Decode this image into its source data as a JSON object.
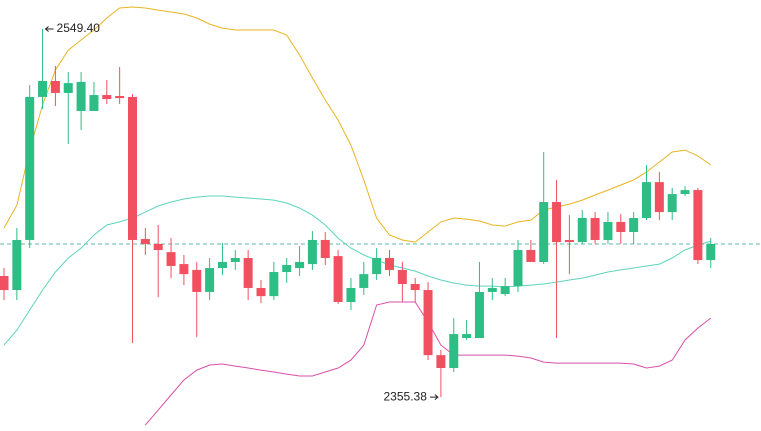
{
  "chart_data": {
    "type": "candlestick",
    "ylim": [
      2337.5,
      2564.7
    ],
    "up_color": "#2ebd85",
    "down_color": "#f0505f",
    "open": [
      2419.2,
      2411.8,
      2438.2,
      2513.6,
      2522.0,
      2515.7,
      2506.2,
      2506.2,
      2514.6,
      2514.1,
      2513.6,
      2438.7,
      2436.1,
      2431.8,
      2425.5,
      2422.4,
      2410.8,
      2423.4,
      2426.6,
      2428.7,
      2412.9,
      2408.6,
      2421.3,
      2423.4,
      2425.5,
      2438.2,
      2429.7,
      2405.5,
      2412.9,
      2420.2,
      2428.7,
      2422.4,
      2415.0,
      2411.8,
      2377.5,
      2370.7,
      2386.5,
      2386.5,
      2410.8,
      2409.7,
      2413.9,
      2432.9,
      2426.6,
      2458.2,
      2438.2,
      2437.1,
      2449.8,
      2438.2,
      2447.7,
      2442.4,
      2449.8,
      2468.7,
      2452.9,
      2462.4,
      2464.5,
      2427.6
    ],
    "high": [
      2423.4,
      2444.5,
      2519.9,
      2549.4,
      2529.9,
      2526.7,
      2526.7,
      2521.5,
      2522.5,
      2529.4,
      2515.1,
      2444.5,
      2446.1,
      2439.2,
      2430.3,
      2426.6,
      2428.7,
      2436.6,
      2432.9,
      2432.9,
      2417.1,
      2426.6,
      2428.7,
      2435.0,
      2442.9,
      2442.4,
      2432.9,
      2418.1,
      2426.6,
      2433.9,
      2432.9,
      2426.6,
      2418.1,
      2416.0,
      2380.2,
      2397.0,
      2396.0,
      2426.6,
      2418.1,
      2418.1,
      2438.2,
      2438.2,
      2484.6,
      2469.8,
      2451.3,
      2454.0,
      2452.9,
      2452.9,
      2451.9,
      2452.9,
      2477.7,
      2474.0,
      2465.6,
      2466.6,
      2465.6,
      2439.2
    ],
    "low": [
      2406.5,
      2406.5,
      2433.9,
      2507.2,
      2508.8,
      2488.8,
      2496.2,
      2506.2,
      2509.9,
      2509.9,
      2383.9,
      2430.3,
      2408.1,
      2418.1,
      2414.4,
      2387.0,
      2406.5,
      2419.7,
      2422.4,
      2406.5,
      2405.0,
      2406.5,
      2415.5,
      2419.2,
      2422.4,
      2425.0,
      2404.4,
      2401.3,
      2409.2,
      2417.1,
      2419.2,
      2405.5,
      2405.5,
      2374.9,
      2355.38,
      2368.6,
      2385.4,
      2386.5,
      2406.5,
      2408.6,
      2410.8,
      2426.6,
      2425.5,
      2386.5,
      2420.2,
      2436.1,
      2436.1,
      2436.1,
      2436.1,
      2436.1,
      2448.7,
      2448.7,
      2448.7,
      2461.4,
      2425.5,
      2423.4
    ],
    "close": [
      2411.8,
      2438.2,
      2513.6,
      2522.0,
      2515.7,
      2520.9,
      2521.5,
      2514.6,
      2512.5,
      2513.0,
      2438.2,
      2436.1,
      2432.9,
      2424.5,
      2420.2,
      2410.8,
      2423.4,
      2426.6,
      2428.7,
      2412.9,
      2408.6,
      2421.3,
      2425.0,
      2426.6,
      2438.2,
      2428.7,
      2405.5,
      2412.9,
      2420.2,
      2428.7,
      2422.4,
      2415.0,
      2411.8,
      2377.5,
      2370.7,
      2388.6,
      2388.6,
      2410.8,
      2412.9,
      2413.9,
      2432.9,
      2426.6,
      2458.2,
      2437.1,
      2437.1,
      2449.8,
      2438.2,
      2447.7,
      2442.4,
      2449.8,
      2468.7,
      2452.9,
      2462.4,
      2464.5,
      2427.6,
      2436.1
    ],
    "bands": {
      "upper": {
        "color": "#e8b423",
        "values": [
          2444.5,
          2456.6,
          2485.6,
          2509.3,
          2527.8,
          2538.3,
          2543.6,
          2548.9,
          2555.2,
          2560.5,
          2561.0,
          2560.5,
          2559.4,
          2558.4,
          2557.3,
          2555.2,
          2552.0,
          2549.9,
          2548.9,
          2548.9,
          2548.9,
          2548.9,
          2546.2,
          2535.7,
          2523.6,
          2512.0,
          2501.4,
          2488.2,
          2469.8,
          2449.8,
          2440.8,
          2438.2,
          2437.1,
          2442.4,
          2447.7,
          2449.8,
          2449.2,
          2448.2,
          2446.1,
          2445.5,
          2447.7,
          2448.7,
          2454.0,
          2455.6,
          2457.1,
          2459.2,
          2461.9,
          2464.5,
          2467.2,
          2469.8,
          2474.0,
          2479.3,
          2484.6,
          2485.6,
          2482.5,
          2477.7
        ]
      },
      "middle": {
        "color": "#5fd3bf",
        "values": [
          2382.8,
          2390.7,
          2401.3,
          2411.8,
          2421.3,
          2428.7,
          2433.9,
          2440.8,
          2446.1,
          2447.7,
          2449.8,
          2452.9,
          2456.1,
          2458.2,
          2459.8,
          2460.8,
          2461.4,
          2461.4,
          2460.8,
          2460.3,
          2459.8,
          2459.2,
          2457.7,
          2455.0,
          2451.3,
          2446.1,
          2439.2,
          2433.9,
          2430.3,
          2427.6,
          2425.0,
          2423.4,
          2421.8,
          2419.2,
          2417.1,
          2415.5,
          2414.4,
          2413.9,
          2413.9,
          2413.4,
          2413.9,
          2414.4,
          2415.0,
          2416.0,
          2417.1,
          2418.1,
          2419.7,
          2421.3,
          2422.4,
          2423.4,
          2424.5,
          2425.5,
          2428.7,
          2432.9,
          2435.5,
          2437.6
        ]
      },
      "lower": {
        "color": "#d94fa8",
        "values": [
          null,
          null,
          null,
          null,
          null,
          null,
          null,
          null,
          null,
          null,
          null,
          2340.6,
          2348.5,
          2356.5,
          2364.4,
          2369.6,
          2372.3,
          2372.8,
          2371.7,
          2370.7,
          2369.6,
          2368.6,
          2367.5,
          2366.5,
          2366.5,
          2368.6,
          2370.7,
          2374.9,
          2382.8,
          2403.9,
          2405.5,
          2405.5,
          2405.5,
          2394.9,
          2382.8,
          2377.5,
          2377.5,
          2377.5,
          2377.5,
          2377.5,
          2377.0,
          2376.0,
          2373.8,
          2373.3,
          2373.3,
          2373.3,
          2373.3,
          2373.3,
          2373.3,
          2372.8,
          2370.7,
          2371.7,
          2374.9,
          2385.4,
          2391.8,
          2397.0
        ]
      }
    },
    "price_line": {
      "value": 2436.1,
      "color": "#5fb8a8"
    },
    "high_label": "2549.40",
    "low_label": "2355.38"
  }
}
